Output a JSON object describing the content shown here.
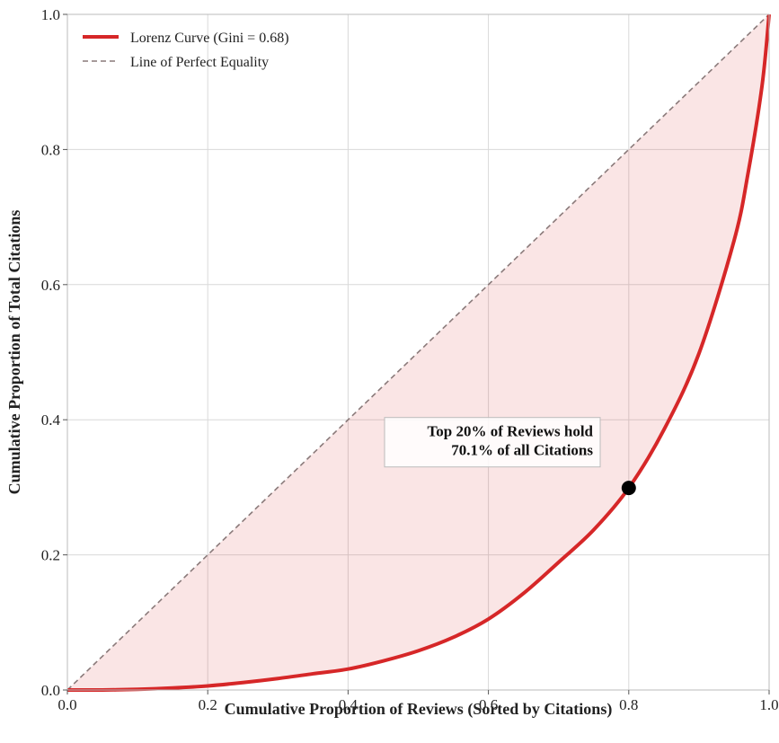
{
  "chart_data": {
    "type": "line",
    "xlabel": "Cumulative Proportion of Reviews (Sorted by Citations)",
    "ylabel": "Cumulative Proportion of Total Citations",
    "xlim": [
      0,
      1
    ],
    "ylim": [
      0,
      1
    ],
    "x_ticks": [
      "0.0",
      "0.2",
      "0.4",
      "0.6",
      "0.8",
      "1.0"
    ],
    "y_ticks": [
      "0.0",
      "0.2",
      "0.4",
      "0.6",
      "0.8",
      "1.0"
    ],
    "grid": true,
    "legend_position": "top-left",
    "series": [
      {
        "name": "Lorenz Curve (Gini = 0.68)",
        "color": "#d62728",
        "style": "solid",
        "x": [
          0.0,
          0.05,
          0.1,
          0.15,
          0.2,
          0.25,
          0.3,
          0.35,
          0.4,
          0.45,
          0.5,
          0.55,
          0.6,
          0.65,
          0.7,
          0.75,
          0.8,
          0.85,
          0.9,
          0.95,
          0.97,
          0.99,
          1.0
        ],
        "y": [
          0.0,
          0.0,
          0.001,
          0.003,
          0.006,
          0.011,
          0.017,
          0.024,
          0.031,
          0.043,
          0.058,
          0.078,
          0.105,
          0.143,
          0.189,
          0.237,
          0.299,
          0.385,
          0.498,
          0.665,
          0.765,
          0.895,
          1.0
        ]
      },
      {
        "name": "Line of Perfect Equality",
        "color": "#8a7a7a",
        "style": "dashed",
        "x": [
          0,
          1
        ],
        "y": [
          0,
          1
        ]
      }
    ],
    "fill_between": {
      "color": "#d62728",
      "opacity": 0.12
    },
    "highlight_point": {
      "x": 0.8,
      "y": 0.299
    },
    "annotation": {
      "lines": [
        "Top 20% of Reviews hold",
        "70.1% of all Citations"
      ],
      "x": 0.75,
      "y": 0.39
    }
  }
}
